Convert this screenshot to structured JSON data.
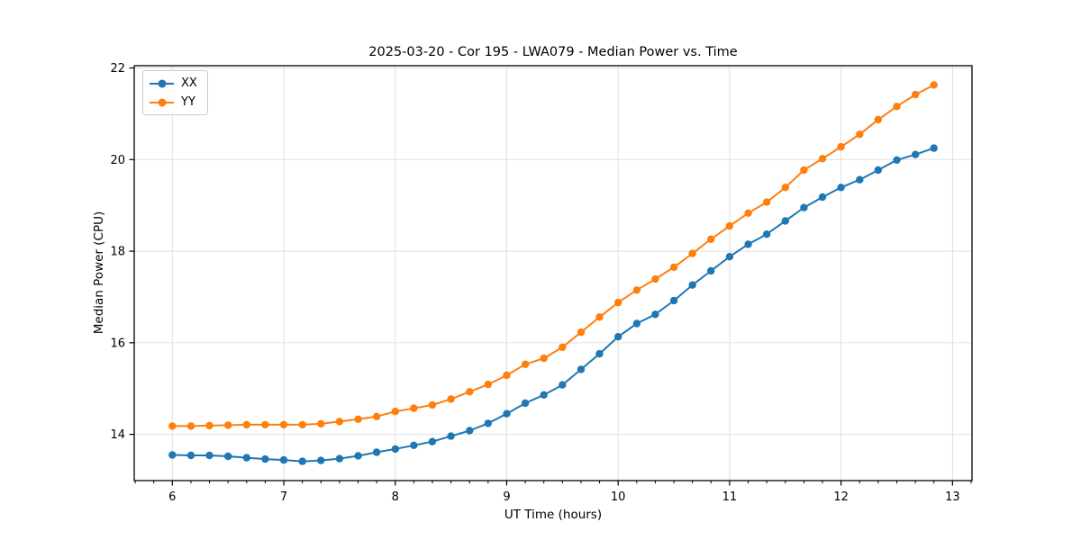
{
  "figure": {
    "background": "#ffffff"
  },
  "chart_data": {
    "type": "line",
    "title": "2025-03-20 - Cor 195 - LWA079 - Median Power vs. Time",
    "xlabel": "UT Time (hours)",
    "ylabel": "Median Power (CPU)",
    "xlim": [
      5.658,
      13.175
    ],
    "ylim": [
      12.99,
      22.05
    ],
    "x_major_ticks": [
      6,
      7,
      8,
      9,
      10,
      11,
      12,
      13
    ],
    "x_tick_labels": [
      "6",
      "7",
      "8",
      "9",
      "10",
      "11",
      "12",
      "13"
    ],
    "x_minor_step": 0.1666667,
    "y_major_ticks": [
      14,
      16,
      18,
      20,
      22
    ],
    "y_tick_labels": [
      "14",
      "16",
      "18",
      "20",
      "22"
    ],
    "grid": true,
    "grid_color": "#e0e0e0",
    "spine_color": "#000000",
    "legend_position": "upper left",
    "marker": "circle",
    "x": [
      6.0,
      6.167,
      6.333,
      6.5,
      6.667,
      6.833,
      7.0,
      7.167,
      7.333,
      7.5,
      7.667,
      7.833,
      8.0,
      8.167,
      8.333,
      8.5,
      8.667,
      8.833,
      9.0,
      9.167,
      9.333,
      9.5,
      9.667,
      9.833,
      10.0,
      10.167,
      10.333,
      10.5,
      10.667,
      10.833,
      11.0,
      11.167,
      11.333,
      11.5,
      11.667,
      11.833,
      12.0,
      12.167,
      12.333,
      12.5,
      12.667,
      12.833
    ],
    "series": [
      {
        "name": "XX",
        "color": "#1f77b4",
        "values": [
          13.55,
          13.54,
          13.54,
          13.52,
          13.49,
          13.46,
          13.44,
          13.41,
          13.43,
          13.47,
          13.53,
          13.61,
          13.68,
          13.76,
          13.84,
          13.96,
          14.08,
          14.24,
          14.45,
          14.68,
          14.86,
          15.08,
          15.42,
          15.76,
          16.13,
          16.42,
          16.62,
          16.92,
          17.26,
          17.57,
          17.88,
          18.15,
          18.37,
          18.66,
          18.95,
          19.18,
          19.39,
          19.56,
          19.77,
          19.99,
          20.11,
          20.25
        ]
      },
      {
        "name": "YY",
        "color": "#ff7f0e",
        "values": [
          14.18,
          14.18,
          14.19,
          14.2,
          14.21,
          14.21,
          14.21,
          14.21,
          14.23,
          14.28,
          14.33,
          14.39,
          14.5,
          14.57,
          14.64,
          14.77,
          14.93,
          15.09,
          15.29,
          15.53,
          15.66,
          15.9,
          16.23,
          16.56,
          16.88,
          17.15,
          17.39,
          17.65,
          17.95,
          18.26,
          18.55,
          18.83,
          19.07,
          19.39,
          19.77,
          20.02,
          20.28,
          20.55,
          20.87,
          21.16,
          21.42,
          21.63
        ]
      }
    ]
  }
}
